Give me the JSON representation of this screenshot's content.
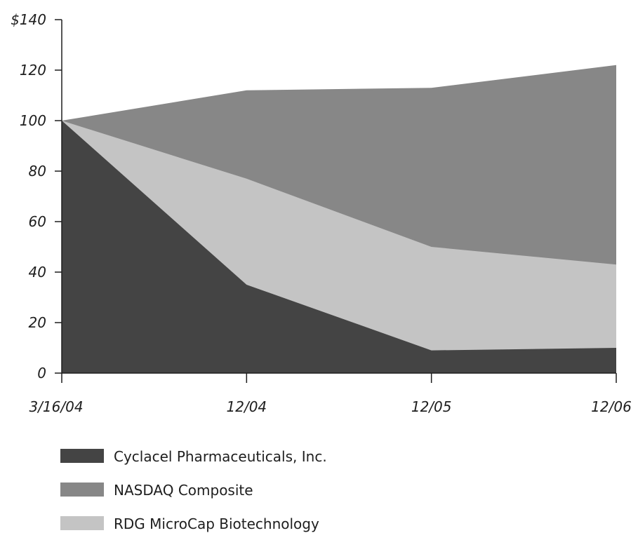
{
  "chart_data": {
    "type": "area",
    "title": "",
    "xlabel": "",
    "ylabel": "",
    "categories": [
      "3/16/04",
      "12/04",
      "12/05",
      "12/06"
    ],
    "ylim": [
      0,
      140
    ],
    "y_ticks": [
      0,
      20,
      40,
      60,
      80,
      100,
      120,
      140
    ],
    "y_tick_labels": [
      "0",
      "20",
      "40",
      "60",
      "80",
      "100",
      "120",
      "$140"
    ],
    "grid": false,
    "legend_position": "bottom-left",
    "series": [
      {
        "name": "NASDAQ Composite",
        "color": "#878787",
        "values": [
          100,
          112,
          113,
          122
        ]
      },
      {
        "name": "RDG MicroCap Biotechnology",
        "color": "#c4c4c4",
        "values": [
          100,
          77,
          50,
          43
        ]
      },
      {
        "name": "Cyclacel Pharmaceuticals, Inc.",
        "color": "#444444",
        "values": [
          100,
          35,
          9,
          10
        ]
      }
    ],
    "legend": [
      {
        "label": "Cyclacel Pharmaceuticals, Inc.",
        "color": "#444444"
      },
      {
        "label": "NASDAQ Composite",
        "color": "#878787"
      },
      {
        "label": "RDG MicroCap Biotechnology",
        "color": "#c4c4c4"
      }
    ]
  }
}
